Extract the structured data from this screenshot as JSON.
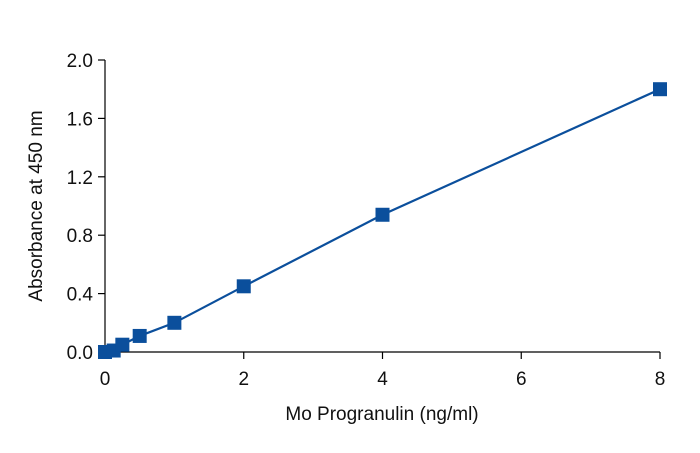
{
  "chart_data": {
    "type": "scatter",
    "xlabel": "Mo Progranulin (ng/ml)",
    "ylabel": "Absorbance at 450 nm",
    "xlim": [
      0,
      8
    ],
    "ylim": [
      0,
      2.0
    ],
    "xticks": [
      "0",
      "2",
      "4",
      "6",
      "8"
    ],
    "yticks": [
      "0.0",
      "0.4",
      "0.8",
      "1.2",
      "1.6",
      "2.0"
    ],
    "xtick_values": [
      0,
      2,
      4,
      6,
      8
    ],
    "ytick_values": [
      0,
      0.4,
      0.8,
      1.2,
      1.6,
      2.0
    ],
    "grid": false,
    "series": [
      {
        "color": "#0b4f9c",
        "marker": "square",
        "fit_line": true,
        "x": [
          0,
          0.125,
          0.25,
          0.5,
          1,
          2,
          4,
          8
        ],
        "y": [
          0.0,
          0.01,
          0.05,
          0.11,
          0.2,
          0.45,
          0.94,
          1.8
        ]
      }
    ]
  }
}
